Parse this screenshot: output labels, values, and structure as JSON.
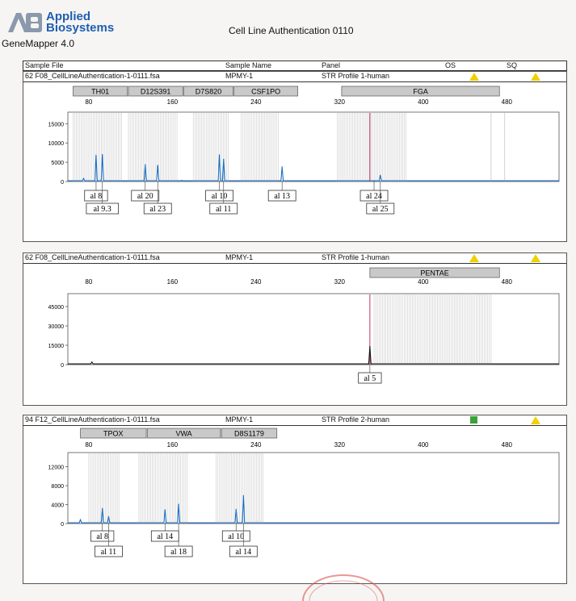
{
  "header": {
    "logo_mark": "AB",
    "logo_line1": "Applied",
    "logo_line2": "Biosystems",
    "app_name": "GeneMapper  4.0",
    "doc_title": "Cell Line Authentication 0110"
  },
  "columns": [
    "Sample File",
    "Sample Name",
    "Panel",
    "OS",
    "SQ"
  ],
  "colors": {
    "trace_blue": "#1a6fc4",
    "trace_black": "#111111",
    "bin_gray": "#c8c8c8",
    "marker_fill": "#c9c9c9",
    "tri_yellow": "#f0d000",
    "sq_green": "#3aa33a",
    "red_line": "#c0306a"
  },
  "chart_data": [
    {
      "type": "line",
      "sample_file": "62  F08_CellLineAuthentication-1-0111.fsa",
      "sample_name": "MPMY-1",
      "panel": "STR Profile 1-human",
      "os_flag": "triangle",
      "sq_flag": "triangle",
      "trace_color": "blue",
      "xlim": [
        60,
        530
      ],
      "xticks": [
        80,
        160,
        240,
        320,
        400,
        480
      ],
      "ylim": [
        0,
        18000
      ],
      "yticks": [
        0,
        5000,
        10000,
        15000
      ],
      "markers": [
        {
          "name": "TH01",
          "start": 65,
          "end": 117
        },
        {
          "name": "D12S391",
          "start": 118,
          "end": 170
        },
        {
          "name": "D7S820",
          "start": 171,
          "end": 218
        },
        {
          "name": "CSF1PO",
          "start": 219,
          "end": 280
        },
        {
          "name": "FGA",
          "start": 322,
          "end": 473
        }
      ],
      "bins": [
        [
          65,
          112
        ],
        [
          118,
          165
        ],
        [
          180,
          215
        ],
        [
          226,
          262
        ],
        [
          318,
          385
        ]
      ],
      "red_line_x": 349,
      "peaks": [
        {
          "x": 75,
          "y": 800
        },
        {
          "x": 87,
          "y": 6800
        },
        {
          "x": 93,
          "y": 7000
        },
        {
          "x": 134,
          "y": 4400
        },
        {
          "x": 146,
          "y": 4200
        },
        {
          "x": 169,
          "y": 300
        },
        {
          "x": 205,
          "y": 6900
        },
        {
          "x": 209,
          "y": 5800
        },
        {
          "x": 265,
          "y": 3800
        },
        {
          "x": 359,
          "y": 1600
        }
      ],
      "calls": [
        {
          "label": "al 8",
          "x": 87,
          "row": 0
        },
        {
          "label": "al 9.3",
          "x": 93,
          "row": 1
        },
        {
          "label": "al 20",
          "x": 134,
          "row": 0
        },
        {
          "label": "al 23",
          "x": 146,
          "row": 1
        },
        {
          "label": "al 10",
          "x": 205,
          "row": 0
        },
        {
          "label": "al 11",
          "x": 209,
          "row": 1
        },
        {
          "label": "al 13",
          "x": 265,
          "row": 0
        },
        {
          "label": "al 24",
          "x": 353,
          "row": 0
        },
        {
          "label": "al 25",
          "x": 359,
          "row": 1
        }
      ]
    },
    {
      "type": "line",
      "sample_file": "62  F08_CellLineAuthentication-1-0111.fsa",
      "sample_name": "MPMY-1",
      "panel": "STR Profile 1-human",
      "os_flag": "triangle",
      "sq_flag": "triangle",
      "trace_color": "black",
      "xlim": [
        60,
        530
      ],
      "xticks": [
        80,
        160,
        240,
        320,
        400,
        480
      ],
      "ylim": [
        0,
        55000
      ],
      "yticks": [
        0,
        15000,
        30000,
        45000
      ],
      "markers": [
        {
          "name": "PENTAE",
          "start": 349,
          "end": 473
        }
      ],
      "bins": [
        [
          353,
          466
        ]
      ],
      "red_line_x": 349,
      "peaks": [
        {
          "x": 83,
          "y": 2000
        },
        {
          "x": 349,
          "y": 14000
        }
      ],
      "calls": [
        {
          "label": "al 5",
          "x": 349,
          "row": 0
        }
      ]
    },
    {
      "type": "line",
      "sample_file": "94  F12_CellLineAuthentication-1-0111.fsa",
      "sample_name": "MPMY-1",
      "panel": "STR Profile 2-human",
      "os_flag": "square",
      "sq_flag": "triangle",
      "trace_color": "blue",
      "xlim": [
        60,
        530
      ],
      "xticks": [
        80,
        160,
        240,
        320,
        400,
        480
      ],
      "ylim": [
        0,
        15000
      ],
      "yticks": [
        0,
        4000,
        8000,
        12000
      ],
      "markers": [
        {
          "name": "TPOX",
          "start": 72,
          "end": 135
        },
        {
          "name": "VWA",
          "start": 136,
          "end": 206
        },
        {
          "name": "D8S1179",
          "start": 207,
          "end": 260
        }
      ],
      "bins": [
        [
          80,
          110
        ],
        [
          128,
          175
        ],
        [
          202,
          247
        ]
      ],
      "red_line_x": null,
      "peaks": [
        {
          "x": 72,
          "y": 800
        },
        {
          "x": 93,
          "y": 3200
        },
        {
          "x": 99,
          "y": 1500
        },
        {
          "x": 153,
          "y": 2900
        },
        {
          "x": 166,
          "y": 4100
        },
        {
          "x": 221,
          "y": 3000
        },
        {
          "x": 228,
          "y": 5900
        }
      ],
      "calls": [
        {
          "label": "al 8",
          "x": 93,
          "row": 0
        },
        {
          "label": "al 11",
          "x": 99,
          "row": 1
        },
        {
          "label": "al 14",
          "x": 153,
          "row": 0
        },
        {
          "label": "al 18",
          "x": 166,
          "row": 1
        },
        {
          "label": "al 10",
          "x": 221,
          "row": 0
        },
        {
          "label": "al 14",
          "x": 228,
          "row": 1
        }
      ]
    }
  ]
}
